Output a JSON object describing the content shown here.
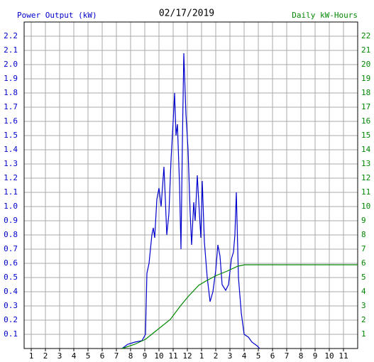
{
  "chart_data": {
    "type": "line",
    "title": "02/17/2019",
    "y_label": "Power Output (kW)",
    "y2_label": "Daily kW-Hours",
    "grid": true,
    "xlim": [
      0.5,
      24
    ],
    "xticks": [
      1,
      2,
      3,
      4,
      5,
      6,
      7,
      8,
      9,
      10,
      11,
      12,
      {
        "value": 13,
        "label": "1"
      },
      {
        "value": 14,
        "label": "2"
      },
      {
        "value": 15,
        "label": "3"
      },
      {
        "value": 16,
        "label": "4"
      },
      {
        "value": 17,
        "label": "5"
      },
      {
        "value": 18,
        "label": "6"
      },
      {
        "value": 19,
        "label": "7"
      },
      {
        "value": 20,
        "label": "8"
      },
      {
        "value": 21,
        "label": "9"
      },
      {
        "value": 22,
        "label": "10"
      },
      {
        "value": 23,
        "label": "11"
      }
    ],
    "ylim": [
      0,
      2.3
    ],
    "yticks": [
      0.1,
      0.2,
      0.3,
      0.4,
      0.5,
      0.6,
      0.7,
      0.8,
      0.9,
      {
        "value": 1,
        "label": "1.0"
      },
      1.1,
      1.2,
      1.3,
      1.4,
      1.5,
      1.6,
      1.7,
      1.8,
      1.9,
      {
        "value": 2,
        "label": "2.0"
      },
      2.1,
      2.2
    ],
    "y2lim": [
      0,
      23
    ],
    "y2ticks": [
      1,
      2,
      3,
      4,
      5,
      6,
      7,
      8,
      9,
      10,
      11,
      12,
      13,
      14,
      15,
      16,
      17,
      18,
      19,
      20,
      21,
      22
    ],
    "series": [
      {
        "name": "Power Output (kW)",
        "color": "#0000cc",
        "x": [
          7.4,
          7.8,
          8.3,
          8.8,
          9.05,
          9.15,
          9.3,
          9.5,
          9.6,
          9.7,
          9.85,
          10.0,
          10.15,
          10.35,
          10.45,
          10.55,
          10.7,
          10.85,
          11.0,
          11.1,
          11.2,
          11.3,
          11.45,
          11.55,
          11.65,
          11.75,
          11.9,
          12.05,
          12.2,
          12.3,
          12.45,
          12.55,
          12.7,
          12.85,
          12.95,
          13.05,
          13.2,
          13.4,
          13.6,
          13.8,
          14.0,
          14.15,
          14.3,
          14.45,
          14.7,
          14.9,
          15.1,
          15.25,
          15.35,
          15.45,
          15.6,
          15.8,
          16.0,
          16.3,
          16.55,
          16.9,
          17.1
        ],
        "values": [
          0,
          0.03,
          0.045,
          0.055,
          0.1,
          0.53,
          0.6,
          0.8,
          0.85,
          0.78,
          1.05,
          1.13,
          1.0,
          1.28,
          1.05,
          0.8,
          0.95,
          1.33,
          1.6,
          1.8,
          1.5,
          1.58,
          1.15,
          0.7,
          1.45,
          2.08,
          1.65,
          1.4,
          0.95,
          0.73,
          1.03,
          0.9,
          1.22,
          0.95,
          0.78,
          1.18,
          0.75,
          0.5,
          0.33,
          0.4,
          0.55,
          0.73,
          0.65,
          0.45,
          0.41,
          0.45,
          0.63,
          0.68,
          0.8,
          1.1,
          0.5,
          0.25,
          0.1,
          0.08,
          0.045,
          0.02,
          0
        ]
      },
      {
        "name": "Daily kW-Hours",
        "color": "#008800",
        "axis": "y2",
        "x": [
          7.4,
          8.3,
          9.05,
          9.8,
          10.8,
          11.55,
          12.05,
          12.8,
          13.3,
          14.05,
          14.8,
          15.55,
          16.05,
          24
        ],
        "values": [
          0,
          0.3,
          0.65,
          1.25,
          2.05,
          3.05,
          3.65,
          4.45,
          4.75,
          5.15,
          5.45,
          5.8,
          5.9,
          5.9
        ]
      }
    ]
  }
}
